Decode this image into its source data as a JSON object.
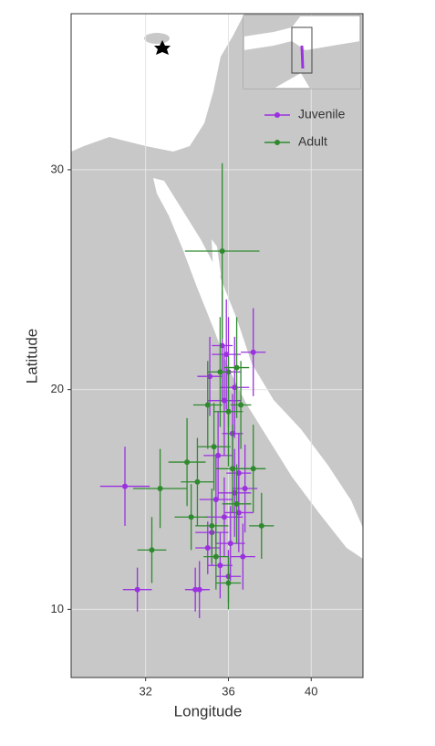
{
  "chart_data": {
    "type": "scatter",
    "x_label": "Longitude",
    "y_label": "Latitude",
    "xlim": [
      28.4,
      42.5
    ],
    "ylim": [
      6.9,
      37.1
    ],
    "xticks": [
      32,
      36,
      40
    ],
    "yticks": [
      10,
      20,
      30
    ],
    "grid": true,
    "legend": "top-right",
    "series": [
      {
        "name": "Juvenile",
        "color": "#9b30e0",
        "x": [
          31.0,
          31.6,
          34.4,
          34.6,
          35.0,
          35.2,
          35.4,
          35.6,
          35.8,
          36.0,
          36.1,
          36.3,
          36.5,
          36.7,
          36.8,
          35.5,
          35.8,
          36.0,
          35.9,
          36.3,
          37.2,
          35.1,
          36.2,
          35.7,
          36.5
        ],
        "values": [
          15.6,
          10.9,
          10.9,
          10.9,
          12.8,
          13.5,
          15.0,
          12.0,
          14.2,
          11.5,
          13.0,
          15.3,
          14.4,
          12.4,
          15.5,
          17.0,
          19.5,
          20.8,
          21.6,
          20.1,
          21.7,
          20.6,
          18.0,
          22.0,
          16.2
        ],
        "xerr": [
          1.2,
          0.7,
          0.5,
          0.5,
          0.6,
          0.8,
          0.8,
          0.6,
          0.9,
          0.6,
          0.7,
          0.8,
          0.7,
          0.6,
          0.6,
          0.7,
          0.8,
          0.6,
          0.7,
          0.7,
          0.6,
          0.6,
          0.5,
          0.5,
          0.6
        ],
        "yerr": [
          1.8,
          1.0,
          1.0,
          1.3,
          1.2,
          1.5,
          2.0,
          1.5,
          1.8,
          1.2,
          1.7,
          2.0,
          1.8,
          1.5,
          2.0,
          2.0,
          2.5,
          2.5,
          2.5,
          2.3,
          2.0,
          1.8,
          1.8,
          2.5,
          1.8
        ]
      },
      {
        "name": "Adult",
        "color": "#2f8a2f",
        "x": [
          35.7,
          32.3,
          32.7,
          34.0,
          34.2,
          34.5,
          35.0,
          35.3,
          35.6,
          36.0,
          36.4,
          36.6,
          36.2,
          37.2,
          37.6,
          36.4,
          35.4,
          36.0,
          35.2
        ],
        "values": [
          26.3,
          12.7,
          15.5,
          16.7,
          14.2,
          15.8,
          19.3,
          17.4,
          20.8,
          19.0,
          21.0,
          19.3,
          16.4,
          16.4,
          13.8,
          14.8,
          12.4,
          11.2,
          13.8
        ],
        "xerr": [
          1.8,
          0.7,
          1.3,
          0.9,
          0.8,
          0.8,
          0.7,
          0.8,
          0.6,
          0.7,
          0.6,
          0.5,
          0.8,
          0.6,
          0.6,
          0.7,
          0.6,
          0.6,
          0.8
        ],
        "yerr": [
          4.0,
          1.5,
          1.8,
          2.0,
          1.5,
          2.0,
          2.0,
          2.0,
          2.5,
          2.5,
          2.3,
          2.0,
          2.0,
          2.0,
          1.5,
          1.8,
          1.5,
          1.2,
          1.7
        ]
      }
    ]
  }
}
